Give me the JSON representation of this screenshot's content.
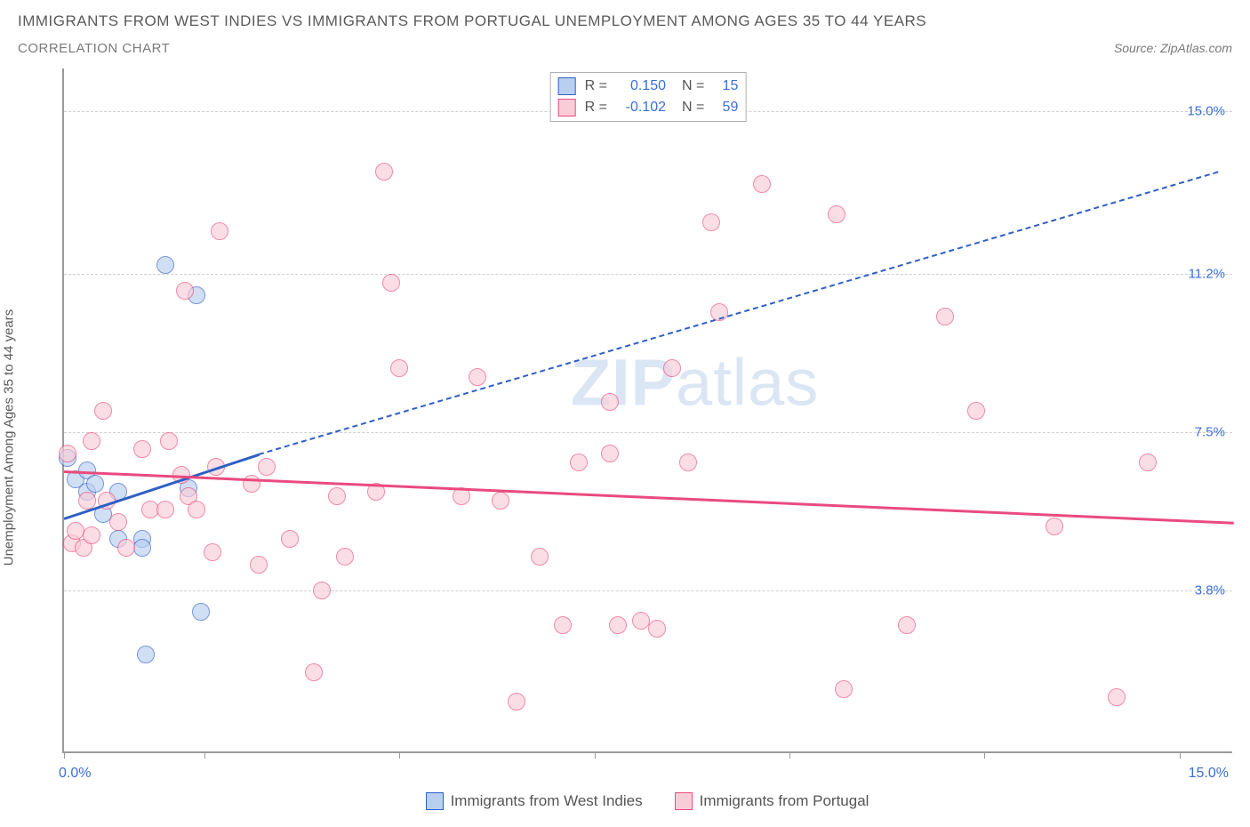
{
  "title": "IMMIGRANTS FROM WEST INDIES VS IMMIGRANTS FROM PORTUGAL UNEMPLOYMENT AMONG AGES 35 TO 44 YEARS",
  "subtitle": "CORRELATION CHART",
  "source_label": "Source: ZipAtlas.com",
  "y_axis_label": "Unemployment Among Ages 35 to 44 years",
  "watermark_a": "ZIP",
  "watermark_b": "atlas",
  "colors": {
    "blue_fill": "#b9cff0",
    "blue_stroke": "#2f5fc4",
    "pink_fill": "#f9cdd8",
    "pink_stroke": "#e94b7e",
    "tick_text": "#3b6fd6",
    "grid": "#d0d0d0",
    "axis": "#9a9a9a"
  },
  "chart": {
    "type": "scatter",
    "xlim": [
      0,
      15
    ],
    "ylim": [
      0,
      16
    ],
    "y_ticks": [
      {
        "v": 3.8,
        "label": "3.8%"
      },
      {
        "v": 7.5,
        "label": "7.5%"
      },
      {
        "v": 11.2,
        "label": "11.2%"
      },
      {
        "v": 15.0,
        "label": "15.0%"
      }
    ],
    "x_ticks_at": [
      0,
      1.8,
      4.3,
      6.8,
      9.3,
      11.8,
      14.3
    ],
    "x_min_label": "0.0%",
    "x_max_label": "15.0%",
    "point_radius": 10,
    "point_opacity": 0.65,
    "series": [
      {
        "name": "Immigrants from West Indies",
        "color_fill_key": "blue_fill",
        "color_stroke_key": "blue_stroke",
        "R": "0.150",
        "N": "15",
        "points": [
          [
            0.05,
            6.9
          ],
          [
            0.15,
            6.4
          ],
          [
            0.3,
            6.6
          ],
          [
            0.3,
            6.1
          ],
          [
            0.4,
            6.3
          ],
          [
            0.5,
            5.6
          ],
          [
            0.7,
            6.1
          ],
          [
            0.7,
            5.0
          ],
          [
            1.0,
            5.0
          ],
          [
            1.0,
            4.8
          ],
          [
            1.3,
            11.4
          ],
          [
            1.7,
            10.7
          ],
          [
            1.6,
            6.2
          ],
          [
            1.75,
            3.3
          ],
          [
            1.05,
            2.3
          ]
        ],
        "trend": {
          "x1": 0,
          "y1": 5.5,
          "x2": 2.5,
          "y2": 7.0,
          "dashed": false,
          "width": 3
        },
        "trend_ext": {
          "x1": 2.5,
          "y1": 7.0,
          "x2": 14.8,
          "y2": 13.6,
          "dashed": true,
          "width": 2
        }
      },
      {
        "name": "Immigrants from Portugal",
        "color_fill_key": "pink_fill",
        "color_stroke_key": "pink_stroke",
        "R": "-0.102",
        "N": "59",
        "points": [
          [
            0.05,
            7.0
          ],
          [
            0.1,
            4.9
          ],
          [
            0.15,
            5.2
          ],
          [
            0.25,
            4.8
          ],
          [
            0.3,
            5.9
          ],
          [
            0.35,
            5.1
          ],
          [
            0.35,
            7.3
          ],
          [
            0.5,
            8.0
          ],
          [
            0.55,
            5.9
          ],
          [
            0.7,
            5.4
          ],
          [
            0.8,
            4.8
          ],
          [
            1.0,
            7.1
          ],
          [
            1.1,
            5.7
          ],
          [
            1.3,
            5.7
          ],
          [
            1.35,
            7.3
          ],
          [
            1.5,
            6.5
          ],
          [
            1.55,
            10.8
          ],
          [
            1.6,
            6.0
          ],
          [
            1.7,
            5.7
          ],
          [
            1.9,
            4.7
          ],
          [
            1.95,
            6.7
          ],
          [
            2.0,
            12.2
          ],
          [
            2.4,
            6.3
          ],
          [
            2.5,
            4.4
          ],
          [
            2.6,
            6.7
          ],
          [
            2.9,
            5.0
          ],
          [
            3.2,
            1.9
          ],
          [
            3.3,
            3.8
          ],
          [
            3.5,
            6.0
          ],
          [
            3.6,
            4.6
          ],
          [
            4.0,
            6.1
          ],
          [
            4.1,
            13.6
          ],
          [
            4.2,
            11.0
          ],
          [
            4.3,
            9.0
          ],
          [
            5.1,
            6.0
          ],
          [
            5.3,
            8.8
          ],
          [
            5.6,
            5.9
          ],
          [
            5.8,
            1.2
          ],
          [
            6.1,
            4.6
          ],
          [
            6.4,
            3.0
          ],
          [
            6.6,
            6.8
          ],
          [
            7.0,
            7.0
          ],
          [
            7.0,
            8.2
          ],
          [
            7.1,
            3.0
          ],
          [
            7.4,
            3.1
          ],
          [
            7.6,
            2.9
          ],
          [
            7.8,
            9.0
          ],
          [
            8.0,
            6.8
          ],
          [
            8.3,
            12.4
          ],
          [
            8.4,
            10.3
          ],
          [
            8.95,
            13.3
          ],
          [
            9.9,
            12.6
          ],
          [
            10.0,
            1.5
          ],
          [
            10.8,
            3.0
          ],
          [
            11.3,
            10.2
          ],
          [
            11.7,
            8.0
          ],
          [
            12.7,
            5.3
          ],
          [
            13.5,
            1.3
          ],
          [
            13.9,
            6.8
          ]
        ],
        "trend": {
          "x1": 0,
          "y1": 6.6,
          "x2": 15,
          "y2": 5.4,
          "dashed": false,
          "width": 3
        }
      }
    ],
    "bottom_legend": [
      {
        "swatch": "blue",
        "label": "Immigrants from West Indies"
      },
      {
        "swatch": "pink",
        "label": "Immigrants from Portugal"
      }
    ]
  }
}
